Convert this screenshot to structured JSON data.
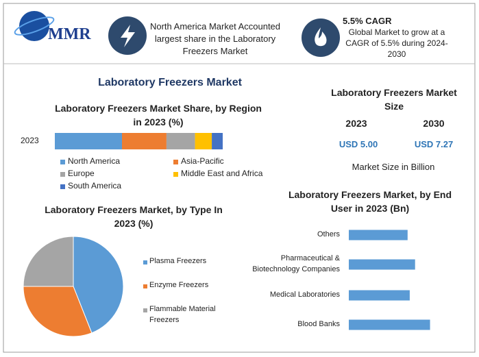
{
  "header": {
    "logo": "MMR",
    "highlight1": "North America Market Accounted largest share in the Laboratory Freezers Market",
    "highlight2_title": "5.5% CAGR",
    "highlight2_text": "Global Market to grow at a CAGR of 5.5% during 2024-2030"
  },
  "main_title": "Laboratory Freezers Market",
  "market_size": {
    "title": "Laboratory Freezers Market Size",
    "years": [
      "2023",
      "2030"
    ],
    "values": [
      "USD 5.00",
      "USD 7.27"
    ],
    "note": "Market Size in Billion"
  },
  "chart_data": [
    {
      "type": "stacked_bar",
      "title": "Laboratory Freezers Market Share, by Region in 2023 (%)",
      "categories": [
        "2023"
      ],
      "xlim": [
        0,
        100
      ],
      "series": [
        {
          "name": "North America",
          "color": "#5b9bd5",
          "values": [
            40
          ]
        },
        {
          "name": "Asia-Pacific",
          "color": "#ed7d31",
          "values": [
            26.5
          ]
        },
        {
          "name": "Europe",
          "color": "#a5a5a5",
          "values": [
            17
          ]
        },
        {
          "name": "Middle East and Africa",
          "color": "#ffc000",
          "values": [
            10
          ]
        },
        {
          "name": "South America",
          "color": "#4472c4",
          "values": [
            6.5
          ]
        }
      ]
    },
    {
      "type": "pie",
      "title": "Laboratory Freezers Market, by Type In 2023 (%)",
      "categories": [
        "Plasma Freezers",
        "Enzyme Freezers",
        "Flammable Material Freezers"
      ],
      "values": [
        44,
        31,
        25
      ],
      "colors": [
        "#5b9bd5",
        "#ed7d31",
        "#a5a5a5"
      ]
    },
    {
      "type": "hbar",
      "title": "Laboratory Freezers Market, by End User in 2023 (Bn)",
      "categories": [
        "Others",
        "Pharmaceutical & Biotechnology Companies",
        "Medical Laboratories",
        "Blood Banks"
      ],
      "values": [
        1.1,
        1.24,
        1.14,
        1.52
      ],
      "color": "#5b9bd5",
      "xlim": [
        0,
        2
      ]
    }
  ]
}
